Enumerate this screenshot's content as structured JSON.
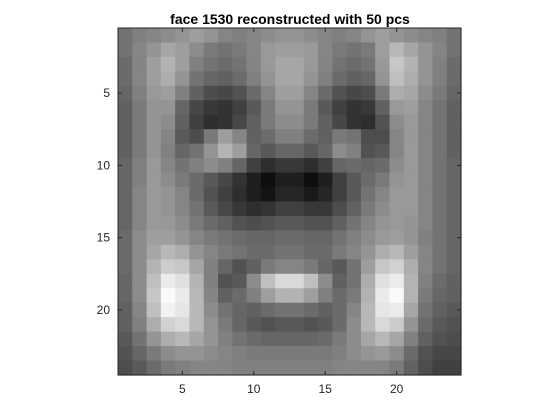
{
  "chart_data": {
    "type": "heatmap",
    "title": "face 1530 reconstructed with 50 pcs",
    "xlabel": "",
    "ylabel": "",
    "colormap": "gray",
    "xlim": [
      0.5,
      24.5
    ],
    "ylim": [
      0.5,
      24.5
    ],
    "y_reversed": true,
    "xticks": [
      5,
      10,
      15,
      20
    ],
    "yticks": [
      5,
      10,
      15,
      20
    ],
    "grid": false,
    "rows": 24,
    "cols": 24,
    "values": [
      [
        0.45,
        0.5,
        0.52,
        0.55,
        0.58,
        0.62,
        0.58,
        0.52,
        0.5,
        0.52,
        0.55,
        0.58,
        0.58,
        0.55,
        0.52,
        0.5,
        0.52,
        0.58,
        0.62,
        0.58,
        0.55,
        0.52,
        0.5,
        0.45
      ],
      [
        0.45,
        0.52,
        0.58,
        0.65,
        0.62,
        0.55,
        0.48,
        0.45,
        0.48,
        0.52,
        0.6,
        0.62,
        0.62,
        0.6,
        0.52,
        0.48,
        0.45,
        0.48,
        0.62,
        0.72,
        0.65,
        0.58,
        0.52,
        0.45
      ],
      [
        0.42,
        0.52,
        0.62,
        0.7,
        0.62,
        0.5,
        0.45,
        0.42,
        0.45,
        0.52,
        0.6,
        0.65,
        0.65,
        0.6,
        0.52,
        0.45,
        0.42,
        0.45,
        0.6,
        0.78,
        0.7,
        0.58,
        0.5,
        0.42
      ],
      [
        0.42,
        0.52,
        0.62,
        0.68,
        0.58,
        0.45,
        0.4,
        0.38,
        0.42,
        0.5,
        0.58,
        0.65,
        0.65,
        0.58,
        0.5,
        0.42,
        0.38,
        0.4,
        0.58,
        0.75,
        0.68,
        0.58,
        0.5,
        0.42
      ],
      [
        0.4,
        0.5,
        0.6,
        0.62,
        0.5,
        0.38,
        0.3,
        0.28,
        0.32,
        0.42,
        0.52,
        0.62,
        0.62,
        0.52,
        0.42,
        0.32,
        0.28,
        0.3,
        0.48,
        0.68,
        0.65,
        0.55,
        0.48,
        0.4
      ],
      [
        0.38,
        0.48,
        0.58,
        0.58,
        0.4,
        0.28,
        0.22,
        0.2,
        0.25,
        0.35,
        0.48,
        0.58,
        0.58,
        0.48,
        0.35,
        0.25,
        0.2,
        0.22,
        0.38,
        0.6,
        0.62,
        0.52,
        0.45,
        0.38
      ],
      [
        0.38,
        0.48,
        0.58,
        0.55,
        0.38,
        0.25,
        0.18,
        0.2,
        0.28,
        0.38,
        0.48,
        0.55,
        0.55,
        0.48,
        0.38,
        0.28,
        0.2,
        0.18,
        0.32,
        0.55,
        0.6,
        0.52,
        0.45,
        0.38
      ],
      [
        0.38,
        0.48,
        0.58,
        0.52,
        0.35,
        0.3,
        0.48,
        0.62,
        0.52,
        0.38,
        0.42,
        0.5,
        0.5,
        0.42,
        0.38,
        0.48,
        0.45,
        0.3,
        0.3,
        0.52,
        0.6,
        0.52,
        0.45,
        0.38
      ],
      [
        0.38,
        0.48,
        0.58,
        0.5,
        0.4,
        0.45,
        0.58,
        0.7,
        0.62,
        0.4,
        0.35,
        0.4,
        0.4,
        0.35,
        0.4,
        0.55,
        0.5,
        0.32,
        0.35,
        0.52,
        0.6,
        0.52,
        0.45,
        0.38
      ],
      [
        0.4,
        0.5,
        0.6,
        0.52,
        0.45,
        0.5,
        0.55,
        0.5,
        0.4,
        0.25,
        0.18,
        0.22,
        0.22,
        0.18,
        0.25,
        0.4,
        0.42,
        0.4,
        0.42,
        0.55,
        0.6,
        0.52,
        0.45,
        0.4
      ],
      [
        0.4,
        0.5,
        0.6,
        0.55,
        0.48,
        0.42,
        0.35,
        0.28,
        0.2,
        0.12,
        0.06,
        0.12,
        0.12,
        0.06,
        0.12,
        0.25,
        0.35,
        0.42,
        0.48,
        0.58,
        0.6,
        0.52,
        0.45,
        0.4
      ],
      [
        0.4,
        0.52,
        0.6,
        0.58,
        0.52,
        0.42,
        0.32,
        0.25,
        0.18,
        0.12,
        0.08,
        0.15,
        0.15,
        0.1,
        0.15,
        0.25,
        0.35,
        0.45,
        0.52,
        0.6,
        0.6,
        0.52,
        0.45,
        0.4
      ],
      [
        0.4,
        0.52,
        0.6,
        0.58,
        0.52,
        0.45,
        0.35,
        0.28,
        0.22,
        0.18,
        0.2,
        0.25,
        0.25,
        0.22,
        0.22,
        0.3,
        0.38,
        0.48,
        0.55,
        0.6,
        0.6,
        0.52,
        0.45,
        0.4
      ],
      [
        0.4,
        0.52,
        0.6,
        0.6,
        0.55,
        0.48,
        0.42,
        0.38,
        0.32,
        0.3,
        0.32,
        0.35,
        0.35,
        0.32,
        0.32,
        0.38,
        0.45,
        0.52,
        0.58,
        0.6,
        0.58,
        0.52,
        0.45,
        0.4
      ],
      [
        0.42,
        0.55,
        0.62,
        0.62,
        0.58,
        0.52,
        0.48,
        0.45,
        0.42,
        0.4,
        0.4,
        0.42,
        0.42,
        0.4,
        0.4,
        0.45,
        0.5,
        0.55,
        0.6,
        0.62,
        0.58,
        0.5,
        0.45,
        0.4
      ],
      [
        0.42,
        0.55,
        0.65,
        0.72,
        0.68,
        0.58,
        0.52,
        0.48,
        0.45,
        0.42,
        0.42,
        0.45,
        0.45,
        0.42,
        0.42,
        0.48,
        0.52,
        0.58,
        0.68,
        0.72,
        0.62,
        0.52,
        0.45,
        0.4
      ],
      [
        0.42,
        0.55,
        0.7,
        0.8,
        0.78,
        0.65,
        0.5,
        0.4,
        0.32,
        0.38,
        0.48,
        0.52,
        0.52,
        0.48,
        0.4,
        0.35,
        0.45,
        0.62,
        0.78,
        0.82,
        0.68,
        0.52,
        0.45,
        0.4
      ],
      [
        0.4,
        0.55,
        0.75,
        0.92,
        0.88,
        0.7,
        0.5,
        0.32,
        0.35,
        0.55,
        0.75,
        0.85,
        0.85,
        0.75,
        0.55,
        0.38,
        0.45,
        0.68,
        0.88,
        0.92,
        0.7,
        0.5,
        0.42,
        0.38
      ],
      [
        0.4,
        0.55,
        0.78,
        0.98,
        0.92,
        0.72,
        0.52,
        0.38,
        0.42,
        0.5,
        0.62,
        0.7,
        0.7,
        0.62,
        0.5,
        0.42,
        0.48,
        0.7,
        0.92,
        0.98,
        0.7,
        0.48,
        0.4,
        0.38
      ],
      [
        0.38,
        0.52,
        0.75,
        0.95,
        0.9,
        0.72,
        0.55,
        0.45,
        0.4,
        0.38,
        0.42,
        0.45,
        0.45,
        0.42,
        0.38,
        0.42,
        0.52,
        0.72,
        0.9,
        0.92,
        0.65,
        0.45,
        0.38,
        0.35
      ],
      [
        0.38,
        0.5,
        0.68,
        0.82,
        0.85,
        0.72,
        0.58,
        0.48,
        0.4,
        0.35,
        0.32,
        0.35,
        0.35,
        0.32,
        0.35,
        0.42,
        0.55,
        0.72,
        0.85,
        0.8,
        0.58,
        0.42,
        0.35,
        0.32
      ],
      [
        0.35,
        0.45,
        0.58,
        0.68,
        0.72,
        0.65,
        0.58,
        0.5,
        0.45,
        0.42,
        0.4,
        0.4,
        0.4,
        0.4,
        0.42,
        0.48,
        0.55,
        0.65,
        0.72,
        0.65,
        0.5,
        0.38,
        0.32,
        0.3
      ],
      [
        0.32,
        0.4,
        0.48,
        0.55,
        0.58,
        0.58,
        0.55,
        0.52,
        0.5,
        0.48,
        0.48,
        0.48,
        0.48,
        0.48,
        0.48,
        0.5,
        0.55,
        0.58,
        0.6,
        0.55,
        0.42,
        0.32,
        0.28,
        0.28
      ],
      [
        0.3,
        0.35,
        0.42,
        0.48,
        0.5,
        0.52,
        0.52,
        0.52,
        0.5,
        0.5,
        0.5,
        0.5,
        0.5,
        0.5,
        0.5,
        0.52,
        0.52,
        0.52,
        0.52,
        0.48,
        0.38,
        0.3,
        0.25,
        0.25
      ]
    ]
  }
}
